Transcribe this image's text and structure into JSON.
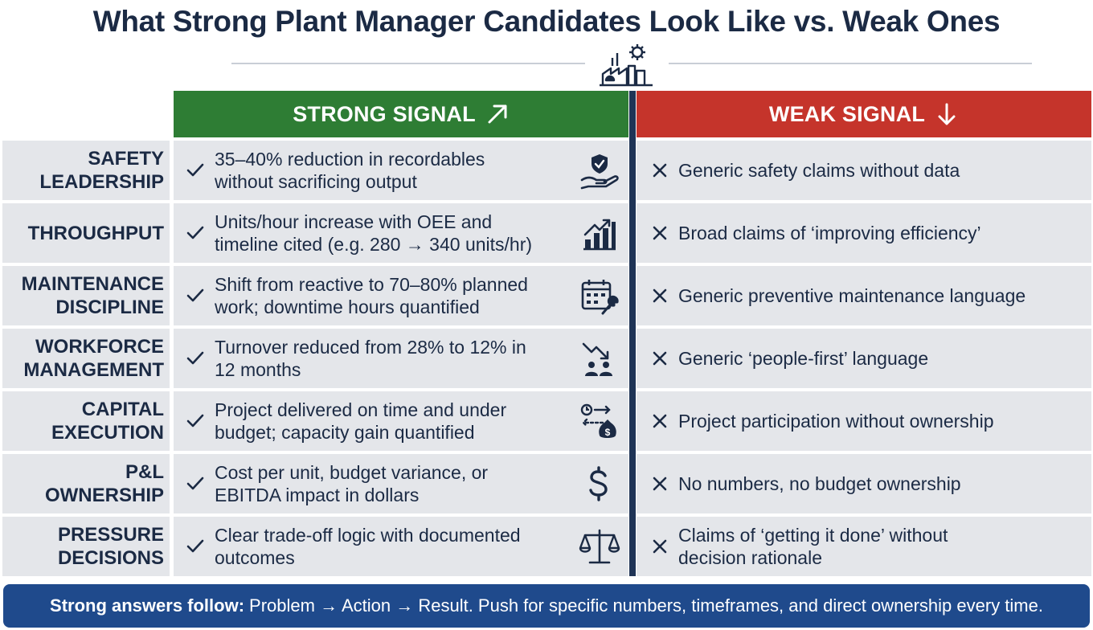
{
  "title": "What Strong Plant Manager Candidates Look Like vs. Weak Ones",
  "header": {
    "strong_label": "STRONG SIGNAL",
    "weak_label": "WEAK SIGNAL",
    "strong_color": "#2e7d34",
    "weak_color": "#c5342b",
    "icon": "factory-gear-icon"
  },
  "rows": [
    {
      "label": [
        "SAFETY",
        "LEADERSHIP"
      ],
      "strong": [
        "35–40% reduction in recordables",
        "without sacrificing output"
      ],
      "weak": [
        "Generic safety claims without data"
      ],
      "icon": "shield-hand-icon"
    },
    {
      "label": [
        "THROUGHPUT"
      ],
      "strong": [
        "Units/hour increase with OEE and",
        "timeline cited (e.g. 280 → 340 units/hr)"
      ],
      "weak": [
        "Broad claims of ‘improving efficiency’"
      ],
      "icon": "bar-chart-up-icon"
    },
    {
      "label": [
        "MAINTENANCE",
        "DISCIPLINE"
      ],
      "strong": [
        "Shift from reactive to 70–80% planned",
        "work; downtime hours quantified"
      ],
      "weak": [
        "Generic preventive maintenance language"
      ],
      "icon": "calendar-wrench-icon"
    },
    {
      "label": [
        "WORKFORCE",
        "MANAGEMENT"
      ],
      "strong": [
        "Turnover reduced from 28% to 12% in",
        "12 months"
      ],
      "weak": [
        "Generic ‘people-first’ language"
      ],
      "icon": "trend-down-people-icon"
    },
    {
      "label": [
        "CAPITAL",
        "EXECUTION"
      ],
      "strong": [
        "Project delivered on time and under",
        "budget; capacity gain quantified"
      ],
      "weak": [
        "Project participation without ownership"
      ],
      "icon": "clock-money-bag-icon"
    },
    {
      "label": [
        "P&L",
        "OWNERSHIP"
      ],
      "strong": [
        "Cost per unit, budget variance, or",
        "EBITDA impact in dollars"
      ],
      "weak": [
        "No numbers, no budget ownership"
      ],
      "icon": "dollar-sign-icon"
    },
    {
      "label": [
        "PRESSURE",
        "DECISIONS"
      ],
      "strong": [
        "Clear trade-off logic with documented",
        "outcomes"
      ],
      "weak": [
        "Claims of ‘getting it done’ without",
        "decision rationale"
      ],
      "icon": "balance-scale-icon"
    }
  ],
  "footer": {
    "lead": "Strong answers follow:",
    "text": "Problem → Action → Result. Push for specific numbers, timeframes, and direct ownership every time."
  }
}
